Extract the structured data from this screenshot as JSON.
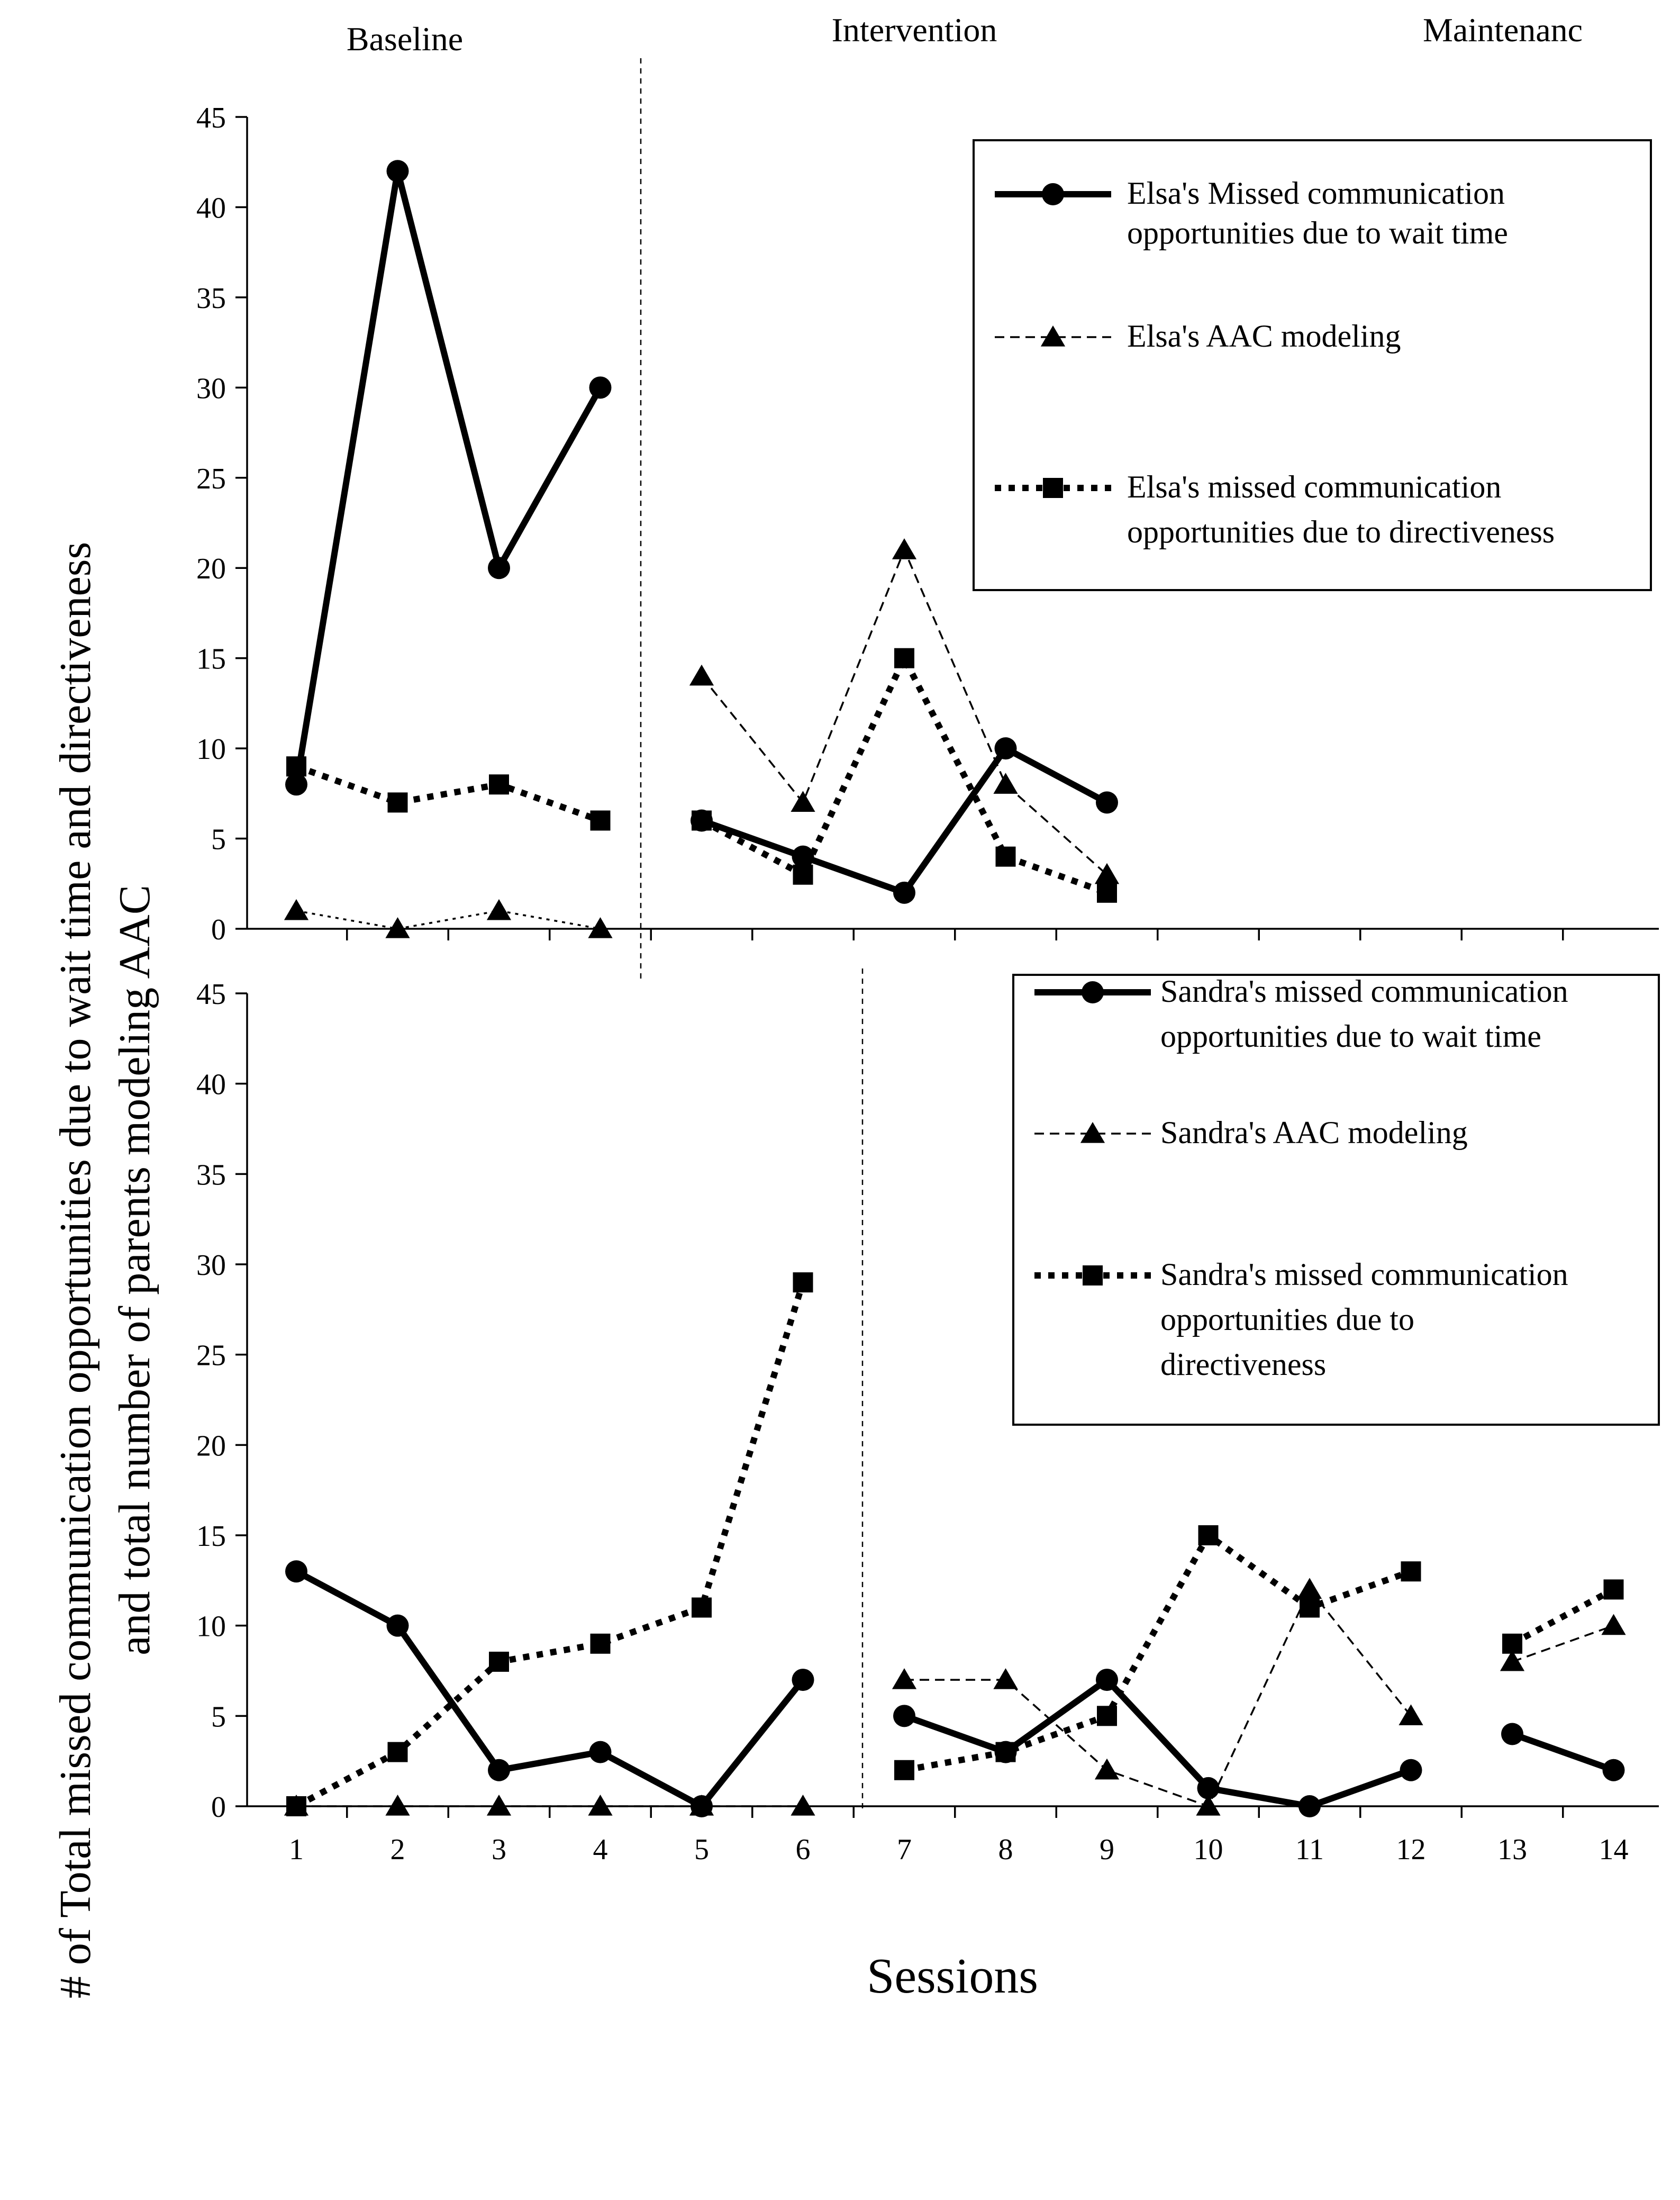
{
  "phase_labels": {
    "baseline": "Baseline",
    "intervention": "Intervention",
    "maintenance": "Maintenanc"
  },
  "y_axis_title": "# of Total missed communication opportunities  due to wait time and directiveness and total number of parents modeling AAC",
  "x_axis_title": "Sessions",
  "chart_data": [
    {
      "type": "line",
      "title": "Elsa",
      "xlabel": "Sessions",
      "ylabel": "# of Total missed communication opportunities due to wait time and directiveness and total number of parents modeling AAC",
      "x": [
        1,
        2,
        3,
        4,
        5,
        6,
        7,
        8,
        9,
        10,
        11,
        12,
        13,
        14
      ],
      "ylim": [
        0,
        45
      ],
      "yticks": [
        0,
        5,
        10,
        15,
        20,
        25,
        30,
        35,
        40,
        45
      ],
      "phase_change_after_session": 4,
      "legend_position": "top-right",
      "series": [
        {
          "name": "Elsa's Missed communication opportunities due to wait time",
          "legend_lines": [
            "Elsa's Missed communication",
            "opportunities due to wait time"
          ],
          "marker": "circle",
          "line": "solid-thick",
          "segments": [
            [
              [
                1,
                8
              ],
              [
                2,
                42
              ],
              [
                3,
                20
              ],
              [
                4,
                30
              ]
            ],
            [
              [
                5,
                6
              ],
              [
                6,
                4
              ],
              [
                7,
                2
              ],
              [
                8,
                10
              ],
              [
                9,
                7
              ]
            ]
          ]
        },
        {
          "name": "Elsa's AAC modeling",
          "legend_lines": [
            "Elsa's AAC modeling"
          ],
          "marker": "triangle",
          "line": "dashed",
          "segments": [
            [
              [
                1,
                1
              ],
              [
                2,
                0
              ],
              [
                3,
                1
              ],
              [
                4,
                0
              ]
            ],
            [
              [
                5,
                14
              ],
              [
                6,
                7
              ],
              [
                7,
                21
              ],
              [
                8,
                8
              ],
              [
                9,
                3
              ]
            ]
          ]
        },
        {
          "name": "Elsa's missed communication opportunities due to directiveness",
          "legend_lines": [
            "Elsa's missed communication",
            "opportunities due to directiveness"
          ],
          "marker": "square",
          "line": "dotted-thick",
          "segments": [
            [
              [
                1,
                9
              ],
              [
                2,
                7
              ],
              [
                3,
                8
              ],
              [
                4,
                6
              ]
            ],
            [
              [
                5,
                6
              ],
              [
                6,
                3
              ],
              [
                7,
                15
              ],
              [
                8,
                4
              ],
              [
                9,
                2
              ]
            ]
          ]
        }
      ]
    },
    {
      "type": "line",
      "title": "Sandra",
      "xlabel": "Sessions",
      "ylabel": "# of Total missed communication opportunities due to wait time and directiveness and total number of parents modeling AAC",
      "x": [
        1,
        2,
        3,
        4,
        5,
        6,
        7,
        8,
        9,
        10,
        11,
        12,
        13,
        14
      ],
      "ylim": [
        0,
        45
      ],
      "yticks": [
        0,
        5,
        10,
        15,
        20,
        25,
        30,
        35,
        40,
        45
      ],
      "phase_change_after_session": 6,
      "legend_position": "top-right",
      "series": [
        {
          "name": "Sandra's missed communication opportunities due to wait time",
          "legend_lines": [
            "Sandra's missed communication",
            "opportunities due to wait time"
          ],
          "marker": "circle",
          "line": "solid-thick",
          "segments": [
            [
              [
                1,
                13
              ],
              [
                2,
                10
              ],
              [
                3,
                2
              ],
              [
                4,
                3
              ],
              [
                5,
                0
              ],
              [
                6,
                7
              ]
            ],
            [
              [
                7,
                5
              ],
              [
                8,
                3
              ],
              [
                9,
                7
              ],
              [
                10,
                1
              ],
              [
                11,
                0
              ],
              [
                12,
                2
              ]
            ],
            [
              [
                13,
                4
              ],
              [
                14,
                2
              ]
            ]
          ]
        },
        {
          "name": "Sandra's AAC modeling",
          "legend_lines": [
            "Sandra's AAC modeling"
          ],
          "marker": "triangle",
          "line": "dashed",
          "segments": [
            [
              [
                1,
                0
              ],
              [
                2,
                0
              ],
              [
                3,
                0
              ],
              [
                4,
                0
              ],
              [
                5,
                0
              ],
              [
                6,
                0
              ]
            ],
            [
              [
                7,
                7
              ],
              [
                8,
                7
              ],
              [
                9,
                2
              ],
              [
                10,
                0
              ],
              [
                11,
                12
              ],
              [
                12,
                5
              ]
            ],
            [
              [
                13,
                8
              ],
              [
                14,
                10
              ]
            ]
          ]
        },
        {
          "name": "Sandra's missed communication opportunities due to directiveness",
          "legend_lines": [
            "Sandra's missed communication",
            "opportunities due to",
            "directiveness"
          ],
          "marker": "square",
          "line": "dotted-thick",
          "segments": [
            [
              [
                1,
                0
              ],
              [
                2,
                3
              ],
              [
                3,
                8
              ],
              [
                4,
                9
              ],
              [
                5,
                11
              ],
              [
                6,
                29
              ]
            ],
            [
              [
                7,
                2
              ],
              [
                8,
                3
              ],
              [
                9,
                5
              ],
              [
                10,
                15
              ],
              [
                11,
                11
              ],
              [
                12,
                13
              ]
            ],
            [
              [
                13,
                9
              ],
              [
                14,
                12
              ]
            ]
          ]
        }
      ]
    }
  ]
}
